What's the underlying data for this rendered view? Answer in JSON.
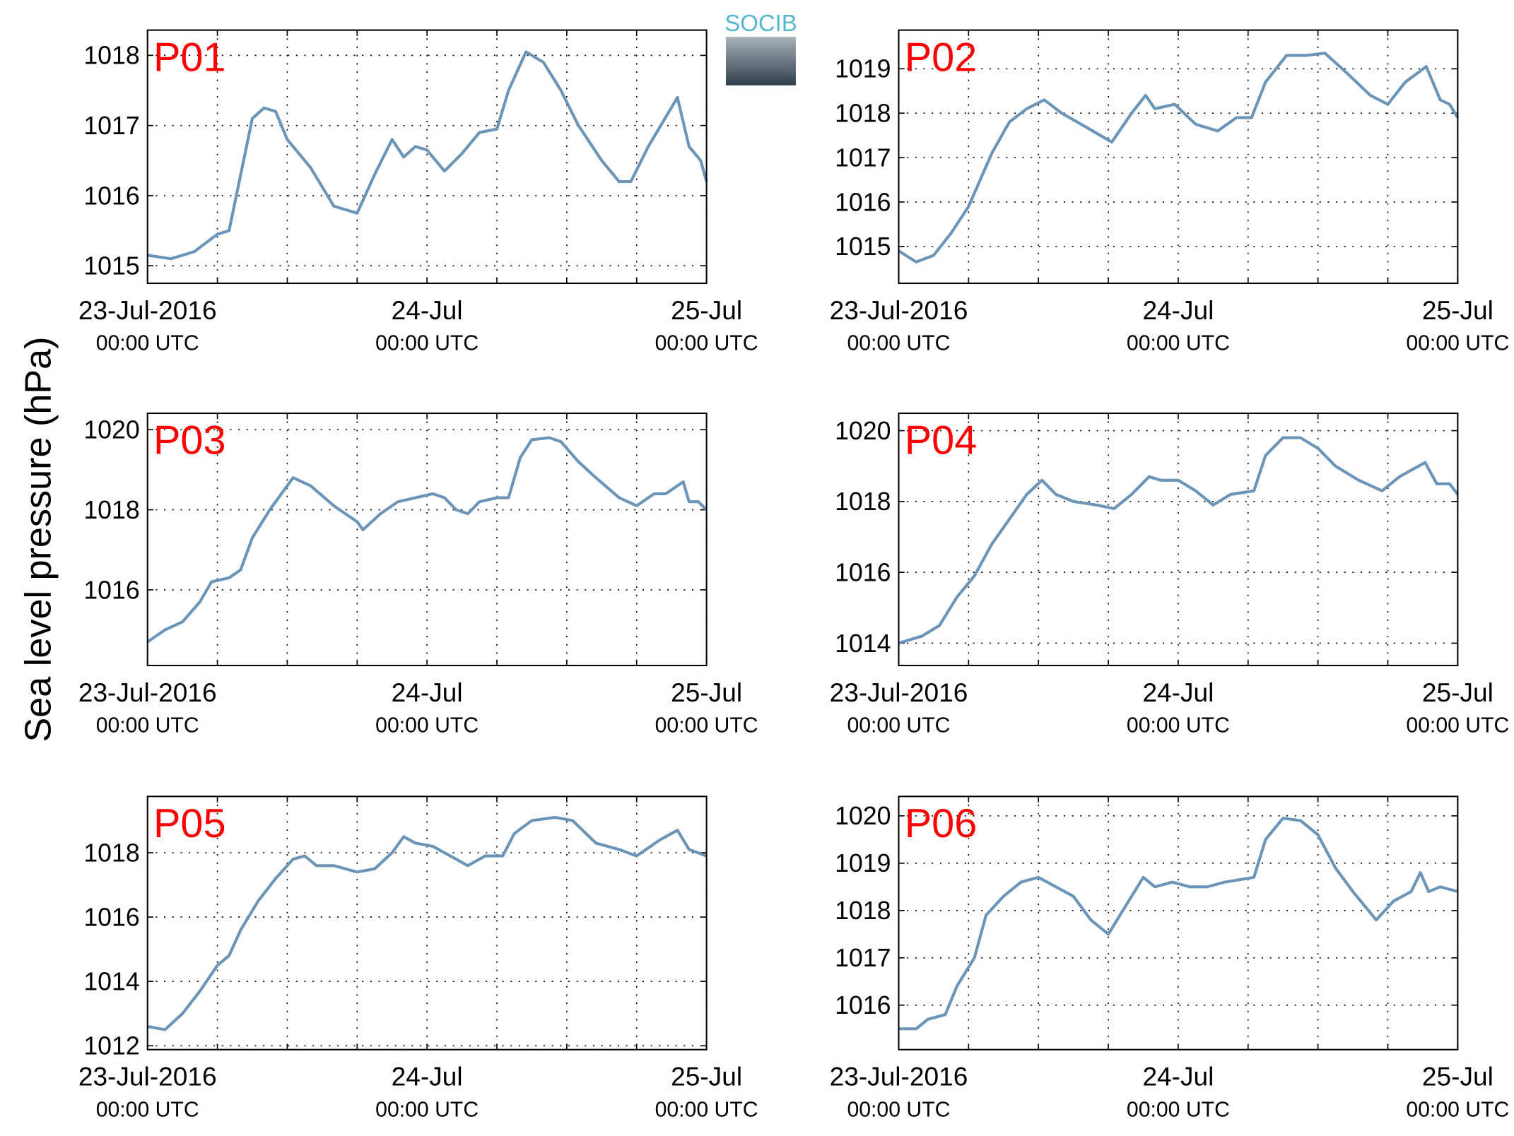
{
  "ylabel": "Sea level pressure (hPa)",
  "logo": "SOCIB",
  "chart_data": [
    {
      "type": "line",
      "title": "P01",
      "color": "#6a94b8",
      "grid": true,
      "x": [
        0,
        2,
        4,
        6,
        7,
        8,
        9,
        10,
        11,
        12,
        14,
        16,
        18,
        19.5,
        21,
        22,
        23,
        24,
        25.5,
        27,
        28.5,
        30,
        31,
        32.5,
        34,
        35.5,
        37,
        39,
        40.5,
        41.5,
        43,
        45.5,
        46.5,
        47.5,
        48
      ],
      "values": [
        1015.15,
        1015.1,
        1015.2,
        1015.45,
        1015.5,
        1016.3,
        1017.1,
        1017.25,
        1017.2,
        1016.8,
        1016.4,
        1015.85,
        1015.75,
        1016.3,
        1016.8,
        1016.55,
        1016.7,
        1016.65,
        1016.35,
        1016.6,
        1016.9,
        1016.95,
        1017.5,
        1018.05,
        1017.9,
        1017.5,
        1017.0,
        1016.5,
        1016.2,
        1016.2,
        1016.7,
        1017.4,
        1016.7,
        1016.5,
        1016.2
      ],
      "xlim": [
        0,
        48
      ],
      "xticks": [
        {
          "value": 0,
          "label": "23-Jul-2016",
          "sublabel": "00:00 UTC"
        },
        {
          "value": 24,
          "label": "24-Jul",
          "sublabel": "00:00 UTC"
        },
        {
          "value": 48,
          "label": "25-Jul",
          "sublabel": "00:00 UTC"
        }
      ],
      "xminor_ticks": [
        6,
        12,
        18,
        30,
        36,
        42
      ],
      "ylim": [
        1014.75,
        1018.36
      ],
      "yticks": [
        1015,
        1016,
        1017,
        1018
      ]
    },
    {
      "type": "line",
      "title": "P02",
      "color": "#6a94b8",
      "grid": true,
      "x": [
        0,
        1.5,
        3,
        4.5,
        6,
        7,
        8,
        9.5,
        11,
        12.5,
        14,
        16,
        18.3,
        20,
        21.2,
        22,
        23.7,
        25.5,
        27.4,
        29,
        30.3,
        31.5,
        33.3,
        35,
        36.6,
        38.5,
        40.5,
        42,
        43.5,
        45.3,
        46.5,
        47.3,
        48
      ],
      "values": [
        1014.9,
        1014.65,
        1014.8,
        1015.3,
        1015.9,
        1016.5,
        1017.1,
        1017.8,
        1018.1,
        1018.3,
        1018.0,
        1017.7,
        1017.35,
        1018.0,
        1018.4,
        1018.1,
        1018.2,
        1017.75,
        1017.6,
        1017.9,
        1017.9,
        1018.7,
        1019.3,
        1019.3,
        1019.35,
        1018.9,
        1018.4,
        1018.2,
        1018.7,
        1019.05,
        1018.3,
        1018.2,
        1017.9
      ],
      "xlim": [
        0,
        48
      ],
      "xticks": [
        {
          "value": 0,
          "label": "23-Jul-2016",
          "sublabel": "00:00 UTC"
        },
        {
          "value": 24,
          "label": "24-Jul",
          "sublabel": "00:00 UTC"
        },
        {
          "value": 48,
          "label": "25-Jul",
          "sublabel": "00:00 UTC"
        }
      ],
      "xminor_ticks": [
        6,
        12,
        18,
        30,
        36,
        42
      ],
      "ylim": [
        1014.17,
        1019.87
      ],
      "yticks": [
        1015,
        1016,
        1017,
        1018,
        1019
      ]
    },
    {
      "type": "line",
      "title": "P03",
      "color": "#6a94b8",
      "grid": true,
      "x": [
        0,
        1.5,
        3,
        4.5,
        5.5,
        7,
        8,
        9,
        10.5,
        11.5,
        12.5,
        14,
        16,
        18,
        18.5,
        20,
        21.5,
        23,
        24.5,
        25.5,
        26.5,
        27.5,
        28.5,
        30,
        31,
        32,
        33,
        34.5,
        35.5,
        37,
        38.5,
        40.5,
        42,
        43.5,
        44.5,
        46,
        46.5,
        47.3,
        48
      ],
      "values": [
        1014.7,
        1015.0,
        1015.2,
        1015.7,
        1016.2,
        1016.3,
        1016.5,
        1017.3,
        1018.0,
        1018.4,
        1018.8,
        1018.6,
        1018.1,
        1017.7,
        1017.5,
        1017.9,
        1018.2,
        1018.3,
        1018.4,
        1018.3,
        1018.0,
        1017.9,
        1018.2,
        1018.3,
        1018.3,
        1019.3,
        1019.75,
        1019.8,
        1019.7,
        1019.2,
        1018.8,
        1018.3,
        1018.1,
        1018.4,
        1018.4,
        1018.7,
        1018.2,
        1018.2,
        1018.0
      ],
      "xlim": [
        0,
        48
      ],
      "xticks": [
        {
          "value": 0,
          "label": "23-Jul-2016",
          "sublabel": "00:00 UTC"
        },
        {
          "value": 24,
          "label": "24-Jul",
          "sublabel": "00:00 UTC"
        },
        {
          "value": 48,
          "label": "25-Jul",
          "sublabel": "00:00 UTC"
        }
      ],
      "xminor_ticks": [
        6,
        12,
        18,
        30,
        36,
        42
      ],
      "ylim": [
        1014.11,
        1020.41
      ],
      "yticks": [
        1016,
        1018,
        1020
      ]
    },
    {
      "type": "line",
      "title": "P04",
      "color": "#6a94b8",
      "grid": true,
      "x": [
        0,
        2,
        3.5,
        5,
        6.5,
        8,
        9.5,
        11,
        12.3,
        13.5,
        15,
        17,
        18.5,
        20,
        21.5,
        22.5,
        24,
        25.5,
        27,
        28.5,
        30.5,
        31.5,
        33,
        34.5,
        36,
        37.5,
        39.5,
        41.5,
        43,
        45.2,
        46.2,
        47.3,
        48
      ],
      "values": [
        1014.0,
        1014.2,
        1014.5,
        1015.3,
        1015.9,
        1016.8,
        1017.5,
        1018.2,
        1018.6,
        1018.2,
        1018.0,
        1017.9,
        1017.8,
        1018.2,
        1018.7,
        1018.6,
        1018.6,
        1018.3,
        1017.9,
        1018.2,
        1018.3,
        1019.3,
        1019.8,
        1019.8,
        1019.5,
        1019.0,
        1018.6,
        1018.3,
        1018.7,
        1019.1,
        1018.5,
        1018.5,
        1018.2
      ],
      "xlim": [
        0,
        48
      ],
      "xticks": [
        {
          "value": 0,
          "label": "23-Jul-2016",
          "sublabel": "00:00 UTC"
        },
        {
          "value": 24,
          "label": "24-Jul",
          "sublabel": "00:00 UTC"
        },
        {
          "value": 48,
          "label": "25-Jul",
          "sublabel": "00:00 UTC"
        }
      ],
      "xminor_ticks": [
        6,
        12,
        18,
        30,
        36,
        42
      ],
      "ylim": [
        1013.37,
        1020.49
      ],
      "yticks": [
        1014,
        1016,
        1018,
        1020
      ]
    },
    {
      "type": "line",
      "title": "P05",
      "color": "#6a94b8",
      "grid": true,
      "x": [
        0,
        1.5,
        3,
        4.5,
        6,
        7,
        8,
        9.5,
        11,
        12.5,
        13.5,
        14.5,
        16,
        18,
        19.5,
        21,
        22,
        23,
        24.5,
        26,
        27.5,
        29,
        30.5,
        31.5,
        33,
        35,
        36.5,
        38.5,
        40.5,
        42,
        44,
        45.5,
        46.5,
        48
      ],
      "values": [
        1012.6,
        1012.5,
        1013.0,
        1013.7,
        1014.5,
        1014.8,
        1015.6,
        1016.5,
        1017.2,
        1017.8,
        1017.9,
        1017.6,
        1017.6,
        1017.4,
        1017.5,
        1018.0,
        1018.5,
        1018.3,
        1018.2,
        1017.9,
        1017.6,
        1017.9,
        1017.9,
        1018.6,
        1019.0,
        1019.1,
        1019.0,
        1018.3,
        1018.1,
        1017.9,
        1018.4,
        1018.7,
        1018.1,
        1017.9
      ],
      "xlim": [
        0,
        48
      ],
      "xticks": [
        {
          "value": 0,
          "label": "23-Jul-2016",
          "sublabel": "00:00 UTC"
        },
        {
          "value": 24,
          "label": "24-Jul",
          "sublabel": "00:00 UTC"
        },
        {
          "value": 48,
          "label": "25-Jul",
          "sublabel": "00:00 UTC"
        }
      ],
      "xminor_ticks": [
        6,
        12,
        18,
        30,
        36,
        42
      ],
      "ylim": [
        1011.88,
        1019.75
      ],
      "yticks": [
        1012,
        1014,
        1016,
        1018
      ]
    },
    {
      "type": "line",
      "title": "P06",
      "color": "#6a94b8",
      "grid": true,
      "x": [
        0,
        1.5,
        2.5,
        4,
        5,
        6.5,
        7.5,
        9,
        10.5,
        12,
        13.5,
        15,
        16.5,
        18,
        19.5,
        21,
        22,
        23.5,
        25,
        26.5,
        28,
        30.5,
        31.5,
        33,
        34.5,
        36,
        37.5,
        39,
        41,
        42.5,
        44,
        44.8,
        45.5,
        46.5,
        48
      ],
      "values": [
        1015.5,
        1015.5,
        1015.7,
        1015.8,
        1016.4,
        1017.0,
        1017.9,
        1018.3,
        1018.6,
        1018.7,
        1018.5,
        1018.3,
        1017.8,
        1017.5,
        1018.1,
        1018.7,
        1018.5,
        1018.6,
        1018.5,
        1018.5,
        1018.6,
        1018.7,
        1019.5,
        1019.95,
        1019.9,
        1019.6,
        1018.9,
        1018.4,
        1017.8,
        1018.2,
        1018.4,
        1018.8,
        1018.4,
        1018.5,
        1018.4
      ],
      "xlim": [
        0,
        48
      ],
      "xticks": [
        {
          "value": 0,
          "label": "23-Jul-2016",
          "sublabel": "00:00 UTC"
        },
        {
          "value": 24,
          "label": "24-Jul",
          "sublabel": "00:00 UTC"
        },
        {
          "value": 48,
          "label": "25-Jul",
          "sublabel": "00:00 UTC"
        }
      ],
      "xminor_ticks": [
        6,
        12,
        18,
        30,
        36,
        42
      ],
      "ylim": [
        1015.06,
        1020.41
      ],
      "yticks": [
        1016,
        1017,
        1018,
        1019,
        1020
      ]
    }
  ]
}
